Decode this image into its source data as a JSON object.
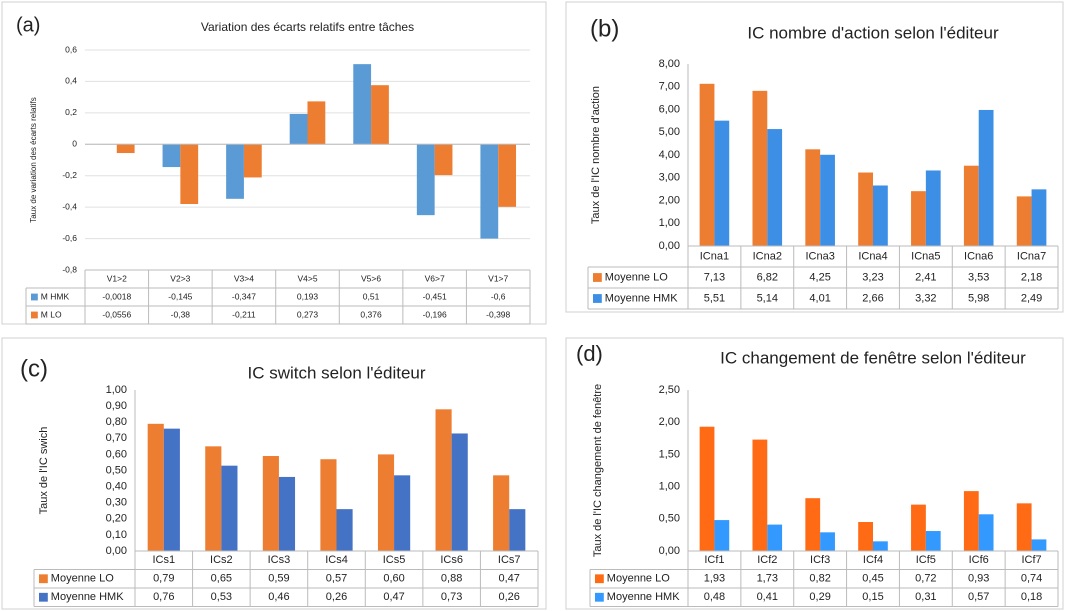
{
  "chart_data": [
    {
      "type": "bar",
      "panel": "(a)",
      "title": "Variation des écarts relatifs entre tâches",
      "y_label": "Taux de variation des écarts relatifs",
      "categories": [
        "V1>2",
        "V2>3",
        "V3>4",
        "V4>5",
        "V5>6",
        "V6>7",
        "V1>7"
      ],
      "series": [
        {
          "name": "M HMK",
          "color": "#5b9bd5",
          "values": [
            -0.0018,
            -0.145,
            -0.347,
            0.193,
            0.51,
            -0.451,
            -0.6
          ],
          "value_labels": [
            "-0,0018",
            "-0,145",
            "-0,347",
            "0,193",
            "0,51",
            "-0,451",
            "-0,6"
          ]
        },
        {
          "name": "M LO",
          "color": "#ed7d31",
          "values": [
            -0.0556,
            -0.38,
            -0.211,
            0.273,
            0.376,
            -0.196,
            -0.398
          ],
          "value_labels": [
            "-0,0556",
            "-0,38",
            "-0,211",
            "0,273",
            "0,376",
            "-0,196",
            "-0,398"
          ]
        }
      ],
      "ylim": [
        -0.8,
        0.6
      ],
      "yticks": [
        {
          "value": -0.8,
          "label": "-0,8"
        },
        {
          "value": -0.6,
          "label": "-0,6"
        },
        {
          "value": -0.4,
          "label": "-0,4"
        },
        {
          "value": -0.2,
          "label": "-0,2"
        },
        0,
        {
          "value": 0.2,
          "label": "0,2"
        },
        {
          "value": 0.4,
          "label": "0,4"
        },
        {
          "value": 0.6,
          "label": "0,6"
        }
      ],
      "grid": true
    },
    {
      "type": "bar",
      "panel": "(b)",
      "title": "IC nombre d'action selon l'éditeur",
      "y_label": "Taux de l'IC nombre d'action",
      "categories": [
        "ICna1",
        "ICna2",
        "ICna3",
        "ICna4",
        "ICna5",
        "ICna6",
        "ICna7"
      ],
      "series": [
        {
          "name": "Moyenne LO",
          "color": "#ed7d31",
          "values": [
            7.13,
            6.82,
            4.25,
            3.23,
            2.41,
            3.53,
            2.18
          ],
          "value_labels": [
            "7,13",
            "6,82",
            "4,25",
            "3,23",
            "2,41",
            "3,53",
            "2,18"
          ]
        },
        {
          "name": "Moyenne HMK",
          "color": "#3d8fe6",
          "values": [
            5.51,
            5.14,
            4.01,
            2.66,
            3.32,
            5.98,
            2.49
          ],
          "value_labels": [
            "5,51",
            "5,14",
            "4,01",
            "2,66",
            "3,32",
            "5,98",
            "2,49"
          ]
        }
      ],
      "ylim": [
        0,
        8
      ],
      "yticks": [
        {
          "value": 0,
          "label": "0,00"
        },
        {
          "value": 1,
          "label": "1,00"
        },
        {
          "value": 2,
          "label": "2,00"
        },
        {
          "value": 3,
          "label": "3,00"
        },
        {
          "value": 4,
          "label": "4,00"
        },
        {
          "value": 5,
          "label": "5,00"
        },
        {
          "value": 6,
          "label": "6,00"
        },
        {
          "value": 7,
          "label": "7,00"
        },
        {
          "value": 8,
          "label": "8,00"
        }
      ],
      "grid": false
    },
    {
      "type": "bar",
      "panel": "(c)",
      "title": "IC switch selon l'éditeur",
      "y_label": "Taux de l'IC swich",
      "categories": [
        "ICs1",
        "ICs2",
        "ICs3",
        "ICs4",
        "ICs5",
        "ICs6",
        "ICs7"
      ],
      "series": [
        {
          "name": "Moyenne LO",
          "color": "#ed7d31",
          "values": [
            0.79,
            0.65,
            0.59,
            0.57,
            0.6,
            0.88,
            0.47
          ],
          "value_labels": [
            "0,79",
            "0,65",
            "0,59",
            "0,57",
            "0,60",
            "0,88",
            "0,47"
          ]
        },
        {
          "name": "Moyenne HMK",
          "color": "#4472c4",
          "values": [
            0.76,
            0.53,
            0.46,
            0.26,
            0.47,
            0.73,
            0.26
          ],
          "value_labels": [
            "0,76",
            "0,53",
            "0,46",
            "0,26",
            "0,47",
            "0,73",
            "0,26"
          ]
        }
      ],
      "ylim": [
        0,
        1
      ],
      "yticks": [
        {
          "value": 0,
          "label": "0,00"
        },
        {
          "value": 0.1,
          "label": "0,10"
        },
        {
          "value": 0.2,
          "label": "0,20"
        },
        {
          "value": 0.3,
          "label": "0,30"
        },
        {
          "value": 0.4,
          "label": "0,40"
        },
        {
          "value": 0.5,
          "label": "0,50"
        },
        {
          "value": 0.6,
          "label": "0,60"
        },
        {
          "value": 0.7,
          "label": "0,70"
        },
        {
          "value": 0.8,
          "label": "0,80"
        },
        {
          "value": 0.9,
          "label": "0,90"
        },
        {
          "value": 1,
          "label": "1,00"
        }
      ],
      "grid": false
    },
    {
      "type": "bar",
      "panel": "(d)",
      "title": "IC changement de fenêtre selon l'éditeur",
      "y_label": "Taux de l'IC changement de fenêtre",
      "categories": [
        "ICf1",
        "ICf2",
        "ICf3",
        "ICf4",
        "ICf5",
        "ICf6",
        "ICf7"
      ],
      "series": [
        {
          "name": "Moyenne LO",
          "color": "#ff6a14",
          "values": [
            1.93,
            1.73,
            0.82,
            0.45,
            0.72,
            0.93,
            0.74
          ],
          "value_labels": [
            "1,93",
            "1,73",
            "0,82",
            "0,45",
            "0,72",
            "0,93",
            "0,74"
          ]
        },
        {
          "name": "Moyenne HMK",
          "color": "#3399ff",
          "values": [
            0.48,
            0.41,
            0.29,
            0.15,
            0.31,
            0.57,
            0.18
          ],
          "value_labels": [
            "0,48",
            "0,41",
            "0,29",
            "0,15",
            "0,31",
            "0,57",
            "0,18"
          ]
        }
      ],
      "ylim": [
        0,
        2.5
      ],
      "yticks": [
        {
          "value": 0,
          "label": "0,00"
        },
        {
          "value": 0.5,
          "label": "0,50"
        },
        {
          "value": 1,
          "label": "1,00"
        },
        {
          "value": 1.5,
          "label": "1,50"
        },
        {
          "value": 2,
          "label": "2,00"
        },
        {
          "value": 2.5,
          "label": "2,50"
        }
      ],
      "grid": false
    }
  ]
}
